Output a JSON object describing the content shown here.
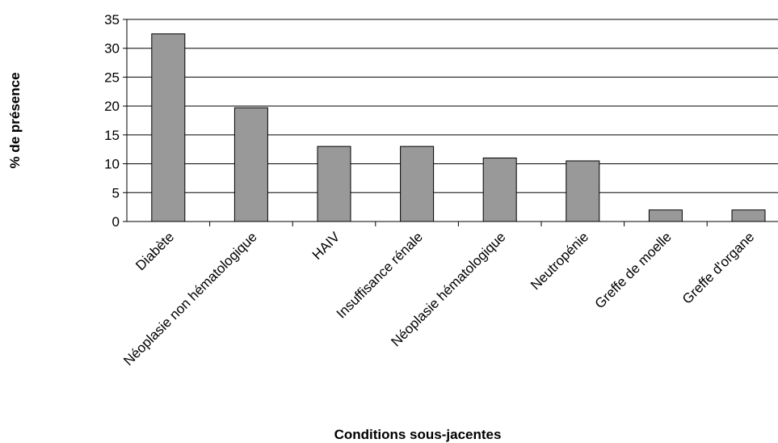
{
  "chart_data": {
    "type": "bar",
    "title": "",
    "xlabel": "Conditions sous-jacentes",
    "ylabel": "% de présence",
    "categories": [
      "Diabète",
      "Néoplasie non hématologique",
      "HAIV",
      "Insuffisance rénale",
      "Néoplasie hématologique",
      "Neutropénie",
      "Greffe de moelle",
      "Greffe d'organe"
    ],
    "values": [
      32.5,
      19.7,
      13,
      13,
      11,
      10.5,
      2,
      2
    ],
    "ylim": [
      0,
      35
    ],
    "yticks": [
      "0",
      "5",
      "10",
      "15",
      "20",
      "25",
      "30",
      "35"
    ],
    "grid": true,
    "legend": "none",
    "colors": {
      "bar": "#999999",
      "bar_stroke": "#000000",
      "grid": "#000000"
    }
  }
}
